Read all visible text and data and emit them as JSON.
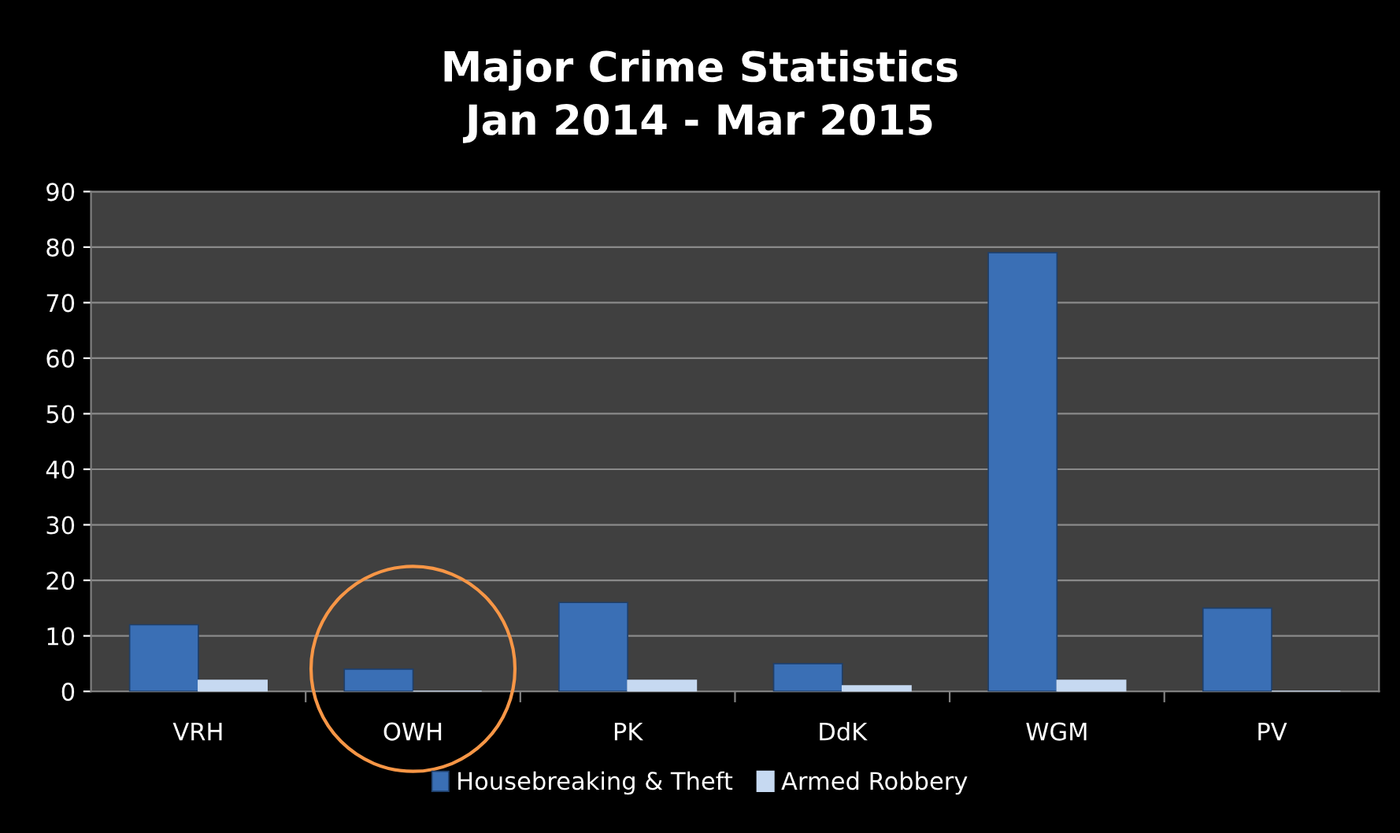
{
  "chart_data": {
    "type": "bar",
    "title": "Major Crime Statistics\nJan 2014 - Mar 2015",
    "categories": [
      "VRH",
      "OWH",
      "PK",
      "DdK",
      "WGM",
      "PV"
    ],
    "series": [
      {
        "name": "Housebreaking & Theft",
        "color": "#3a6fb5",
        "values": [
          12,
          4,
          16,
          5,
          79,
          15
        ]
      },
      {
        "name": "Armed Robbery",
        "color": "#c6d9f1",
        "values": [
          2,
          0,
          2,
          1,
          2,
          0
        ]
      }
    ],
    "ylim": [
      0,
      90
    ],
    "yticks": [
      0,
      10,
      20,
      30,
      40,
      50,
      60,
      70,
      80,
      90
    ],
    "grid": "y",
    "legend": "bottom"
  }
}
